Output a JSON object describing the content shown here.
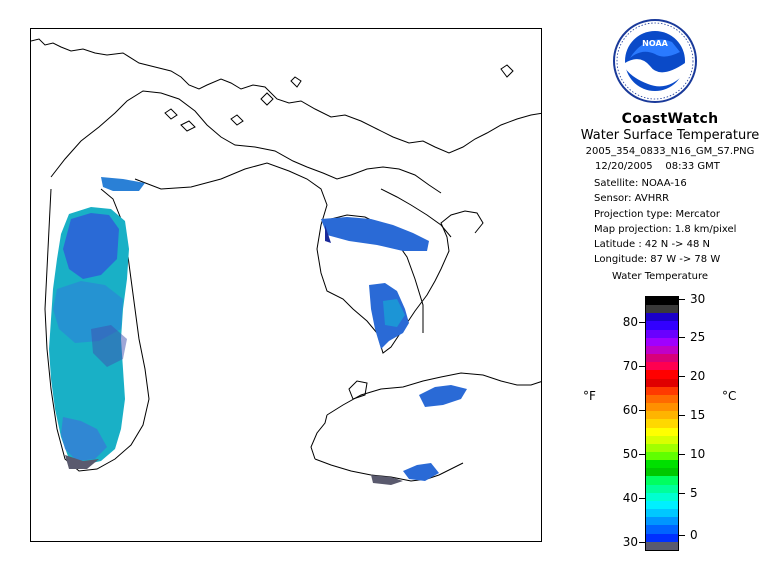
{
  "header": {
    "title": "CoastWatch",
    "subtitle": "Water Surface Temperature",
    "filename": "2005_354_0833_N16_GM_S7.PNG",
    "date": "12/20/2005",
    "time": "08:33 GMT"
  },
  "details": {
    "satellite": "Satellite: NOAA-16",
    "sensor": "Sensor: AVHRR",
    "projection_type": "Projection type:  Mercator",
    "map_projection": "Map projection: 1.8 km/pixel",
    "latitude": "Latitude : 42 N -> 48 N",
    "longitude": "Longitude: 87 W -> 78 W"
  },
  "logo": {
    "text": "NOAA",
    "icon": "noaa-logo-icon"
  },
  "legend": {
    "title": "Water Temperature",
    "unit_f": "°F",
    "unit_c": "°C",
    "ticks_f": [
      "80",
      "70",
      "60",
      "50",
      "40",
      "30"
    ],
    "ticks_c": [
      "30",
      "25",
      "20",
      "15",
      "10",
      "5",
      "0"
    ],
    "colors": [
      "#000000",
      "#3a3a3a",
      "#1a00c8",
      "#3200ff",
      "#6a00ff",
      "#a000ff",
      "#c000c8",
      "#d8007a",
      "#ff0050",
      "#ff0000",
      "#e00000",
      "#ff3a00",
      "#ff6a00",
      "#ff9000",
      "#ffb400",
      "#ffd800",
      "#ffff00",
      "#d8ff00",
      "#a0ff00",
      "#60ff00",
      "#00e000",
      "#00c800",
      "#00ff60",
      "#00ff9a",
      "#00ffd0",
      "#00f0ff",
      "#00c8ff",
      "#0096ff",
      "#0064ff",
      "#0030ff",
      "#5a5a6e"
    ]
  }
}
